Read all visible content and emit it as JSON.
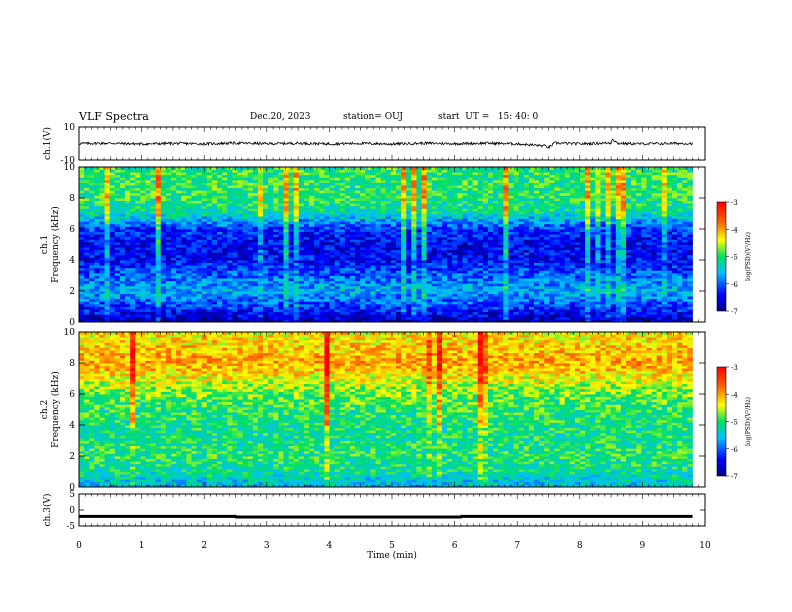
{
  "header": {
    "title": "VLF Spectra",
    "date": "Dec.20, 2023",
    "station": "station= OUJ",
    "start": "start  UT =   15: 40: 0"
  },
  "chart_data": [
    {
      "type": "line",
      "panel": "ch1-waveform",
      "ylabel": "ch.1(V)",
      "ylim": [
        -10,
        10
      ],
      "yticks": [
        "10",
        "-10"
      ],
      "xlim": [
        0,
        10
      ],
      "series": [
        {
          "values": [
            [
              0.0,
              0.0
            ],
            [
              0.5,
              0.2
            ],
            [
              1.0,
              -0.3
            ],
            [
              1.5,
              0.1
            ],
            [
              2.0,
              -0.2
            ],
            [
              2.5,
              0.3
            ],
            [
              3.0,
              -0.1
            ],
            [
              3.5,
              0.2
            ],
            [
              4.0,
              -0.2
            ],
            [
              4.5,
              0.1
            ],
            [
              5.0,
              -0.3
            ],
            [
              5.5,
              0.2
            ],
            [
              6.0,
              -0.1
            ],
            [
              6.5,
              0.2
            ],
            [
              7.0,
              -0.2
            ],
            [
              7.45,
              -1.5
            ],
            [
              7.5,
              -2.5
            ],
            [
              7.6,
              0.3
            ],
            [
              8.0,
              -0.2
            ],
            [
              8.5,
              0.4
            ],
            [
              8.52,
              3.0
            ],
            [
              8.6,
              0.1
            ],
            [
              9.0,
              -0.2
            ],
            [
              9.5,
              0.1
            ],
            [
              9.8,
              0.0
            ]
          ]
        }
      ]
    },
    {
      "type": "heatmap",
      "panel": "ch1-spectrogram",
      "ylabel": "ch.1\nFrequency (kHz)",
      "xlim": [
        0,
        10
      ],
      "ylim": [
        0,
        10
      ],
      "yticks": [
        "0",
        "2",
        "4",
        "6",
        "8",
        "10"
      ],
      "colorbar": {
        "label": "log(PSD)(V²/Hz)",
        "range": [
          -7,
          -3
        ],
        "ticks": [
          "-3",
          "-4",
          "-5",
          "-6",
          "-7"
        ]
      },
      "freq_profile_kHz": [
        0,
        1,
        2,
        3,
        4,
        5,
        6,
        7,
        8,
        9,
        10
      ],
      "logpsd_profile": [
        -6.8,
        -6.2,
        -5.6,
        -6.0,
        -6.4,
        -6.5,
        -6.2,
        -5.3,
        -5.0,
        -5.0,
        -5.0
      ],
      "data_end_min": 9.8
    },
    {
      "type": "heatmap",
      "panel": "ch2-spectrogram",
      "ylabel": "ch.2\nFrequency (kHz)",
      "xlim": [
        0,
        10
      ],
      "ylim": [
        0,
        10
      ],
      "yticks": [
        "0",
        "2",
        "4",
        "6",
        "8",
        "10"
      ],
      "colorbar": {
        "label": "log(PSD)(V²/Hz)",
        "range": [
          -7,
          -3
        ],
        "ticks": [
          "-3",
          "-4",
          "-5",
          "-6",
          "-7"
        ]
      },
      "freq_profile_kHz": [
        0,
        1,
        2,
        3,
        4,
        5,
        6,
        7,
        8,
        9,
        10
      ],
      "logpsd_profile": [
        -5.6,
        -5.2,
        -5.0,
        -5.1,
        -5.1,
        -5.0,
        -4.8,
        -4.4,
        -4.0,
        -4.2,
        -4.3
      ],
      "data_end_min": 9.8
    },
    {
      "type": "line",
      "panel": "ch3-waveform",
      "ylabel": "ch.3(V)",
      "ylim": [
        -5,
        5
      ],
      "yticks": [
        "5",
        "0",
        "-5"
      ],
      "xlim": [
        0,
        10
      ],
      "xlabel": "Time (min)",
      "xticks": [
        "0",
        "1",
        "2",
        "3",
        "4",
        "5",
        "6",
        "7",
        "8",
        "9",
        "10"
      ],
      "series": [
        {
          "values": [
            [
              0,
              -2.0
            ],
            [
              2.5,
              -2.0
            ],
            [
              2.51,
              -2.2
            ],
            [
              6.1,
              -2.2
            ],
            [
              6.11,
              -2.0
            ],
            [
              9.8,
              -2.0
            ]
          ]
        }
      ]
    }
  ]
}
